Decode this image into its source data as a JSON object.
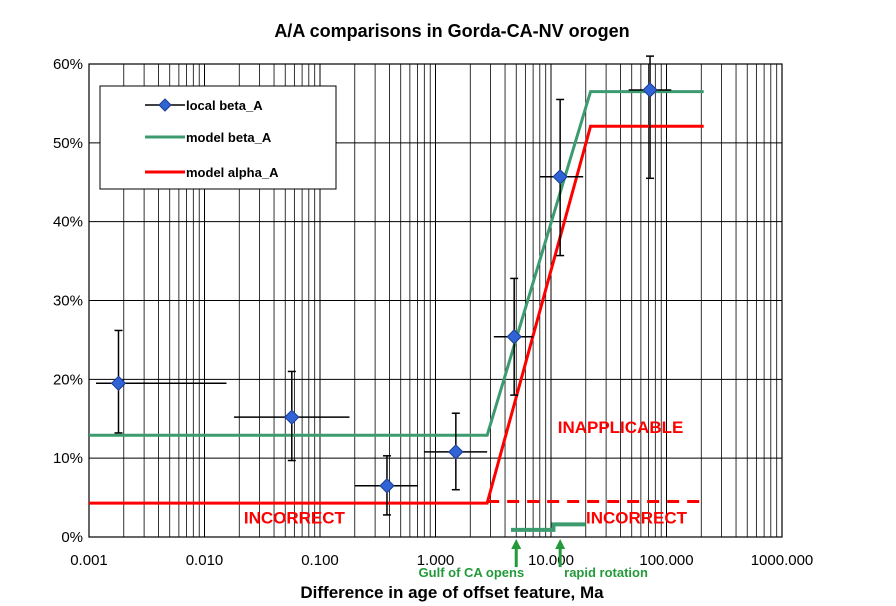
{
  "chart_data": {
    "type": "scatter",
    "title": "A/A comparisons in Gorda-CA-NV orogen",
    "xlabel": "Difference in age of offset feature, Ma",
    "ylabel": "",
    "x_scale": "log",
    "xlim": [
      0.001,
      1000
    ],
    "ylim": [
      0,
      0.6
    ],
    "grid": true,
    "legend_position": "top-left",
    "x_tick_labels": [
      "0.001",
      "0.010",
      "0.100",
      "1.000",
      "10.000",
      "100.000",
      "1000.000"
    ],
    "x_ticks": [
      0.001,
      0.01,
      0.1,
      1,
      10,
      100,
      1000
    ],
    "y_tick_labels": [
      "0%",
      "10%",
      "20%",
      "30%",
      "40%",
      "50%",
      "60%"
    ],
    "y_ticks": [
      0,
      0.1,
      0.2,
      0.3,
      0.4,
      0.5,
      0.6
    ],
    "series": [
      {
        "name": "local beta_A",
        "kind": "points",
        "color": "#2f63d6",
        "points": [
          {
            "x": 0.0018,
            "y": 0.195,
            "xerr": [
              0.00115,
              0.0155
            ],
            "yerr": [
              0.132,
              0.262
            ]
          },
          {
            "x": 0.057,
            "y": 0.152,
            "xerr": [
              0.018,
              0.18
            ],
            "yerr": [
              0.097,
              0.21
            ]
          },
          {
            "x": 0.38,
            "y": 0.065,
            "xerr": [
              0.2,
              0.7
            ],
            "yerr": [
              0.028,
              0.103
            ]
          },
          {
            "x": 1.5,
            "y": 0.108,
            "xerr": [
              0.8,
              2.8
            ],
            "yerr": [
              0.06,
              0.157
            ]
          },
          {
            "x": 4.8,
            "y": 0.254,
            "xerr": [
              3.2,
              7.0
            ],
            "yerr": [
              0.18,
              0.328
            ]
          },
          {
            "x": 12.0,
            "y": 0.457,
            "xerr": [
              8.0,
              19.0
            ],
            "yerr": [
              0.357,
              0.555
            ]
          },
          {
            "x": 72.0,
            "y": 0.567,
            "xerr": [
              47.0,
              110.0
            ],
            "yerr": [
              0.455,
              0.61
            ]
          }
        ]
      },
      {
        "name": "model beta_A",
        "kind": "line",
        "color": "#3c9b6f",
        "x": [
          0.001,
          2.8,
          22,
          210
        ],
        "y": [
          0.129,
          0.129,
          0.565,
          0.565
        ]
      },
      {
        "name": "model alpha_A",
        "kind": "line",
        "color": "#ff0000",
        "x": [
          0.001,
          2.8,
          22,
          210
        ],
        "y": [
          0.043,
          0.043,
          0.521,
          0.521
        ]
      }
    ],
    "reference_lines": [
      {
        "kind": "dashed",
        "color": "#ff0000",
        "x": [
          2.8,
          210
        ],
        "y": [
          0.045,
          0.045
        ]
      },
      {
        "kind": "step",
        "color": "#3c9b6f",
        "x": [
          4.5,
          10.5,
          10.5,
          20
        ],
        "y": [
          0.009,
          0.009,
          0.016,
          0.016
        ]
      }
    ],
    "annotations": [
      {
        "text": "INAPPLICABLE",
        "color": "#ff0000",
        "x": 40,
        "y": 0.132
      },
      {
        "text": "INCORRECT",
        "color": "#ff0000",
        "x": 0.06,
        "y": 0.017
      },
      {
        "text": "INCORRECT",
        "color": "#ff0000",
        "x": 55,
        "y": 0.017
      }
    ],
    "events": [
      {
        "label": "Gulf of CA opens",
        "x": 5.0,
        "color": "#239a3a"
      },
      {
        "label": "rapid rotation",
        "x": 12.0,
        "color": "#239a3a"
      }
    ]
  }
}
